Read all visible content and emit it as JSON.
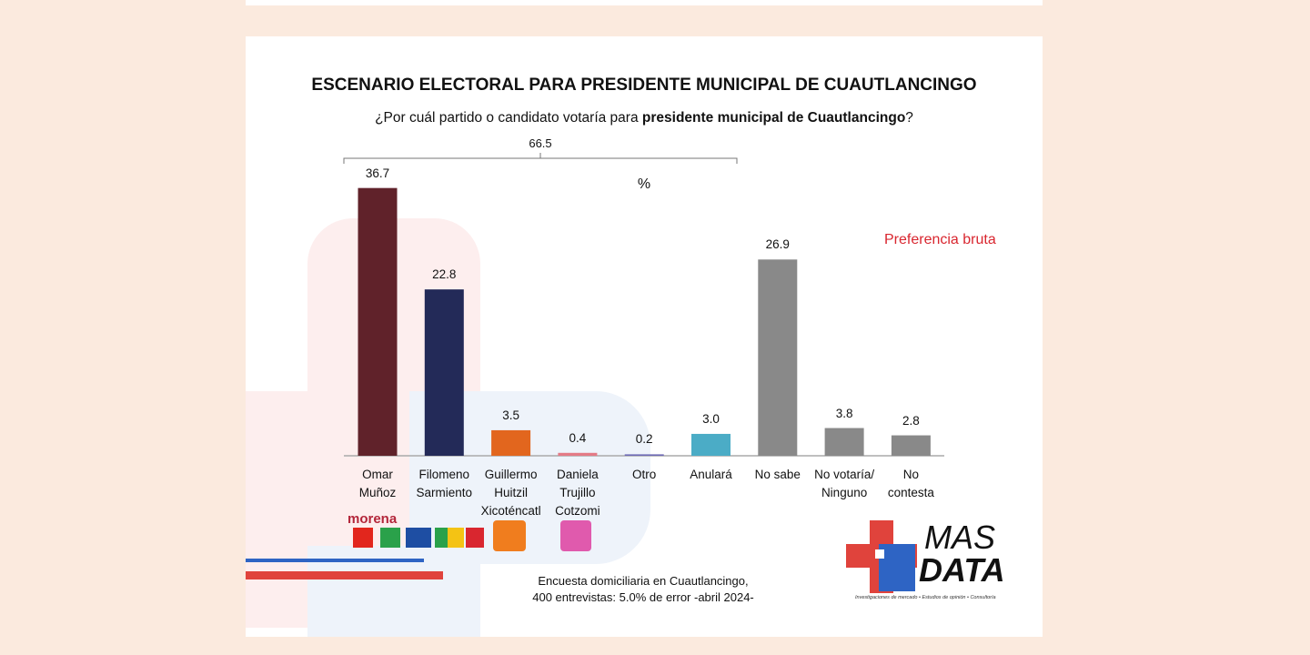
{
  "chart_data": {
    "type": "bar",
    "title": "ESCENARIO ELECTORAL PARA PRESIDENTE MUNICIPAL DE CUAUTLANCINGO",
    "subtitle": {
      "text": "¿Por cuál partido o candidato votaría para",
      "bold": "presidente municipal de Cuautlancingo",
      "end": "?"
    },
    "unit_label": "%",
    "series_label": "Preferencia bruta",
    "bracket": {
      "value": 66.5
    },
    "categories": [
      "Omar\nMuñoz",
      "Filomeno\nSarmiento",
      "Guillermo\nHuitzil\nXicoténcatl",
      "Daniela\nTrujillo\nCotzomi",
      "Otro",
      "Anulará",
      "No sabe",
      "No votaría/\nNinguno",
      "No\ncontesta"
    ],
    "values": [
      36.7,
      22.8,
      3.5,
      0.4,
      0.2,
      3.0,
      26.9,
      3.8,
      2.8
    ],
    "value_labels": [
      "36.7",
      "22.8",
      "3.5",
      "0.4",
      "0.2",
      "3.0",
      "26.9",
      "3.8",
      "2.8"
    ],
    "colors": [
      "#60222a",
      "#232a58",
      "#e2661e",
      "#e47a86",
      "#6e6ab5",
      "#4bacc6",
      "#898989",
      "#898989",
      "#898989"
    ],
    "footer": "Encuesta domiciliaria en Cuautlancingo,\n400 entrevistas: 5.0% de error -abril 2024-",
    "party_logo": "morena",
    "brand": {
      "line1": "MAS",
      "line2": "DATA",
      "tagline": "Investigaciones de mercado • Estudios de opinión • Consultoría"
    }
  }
}
